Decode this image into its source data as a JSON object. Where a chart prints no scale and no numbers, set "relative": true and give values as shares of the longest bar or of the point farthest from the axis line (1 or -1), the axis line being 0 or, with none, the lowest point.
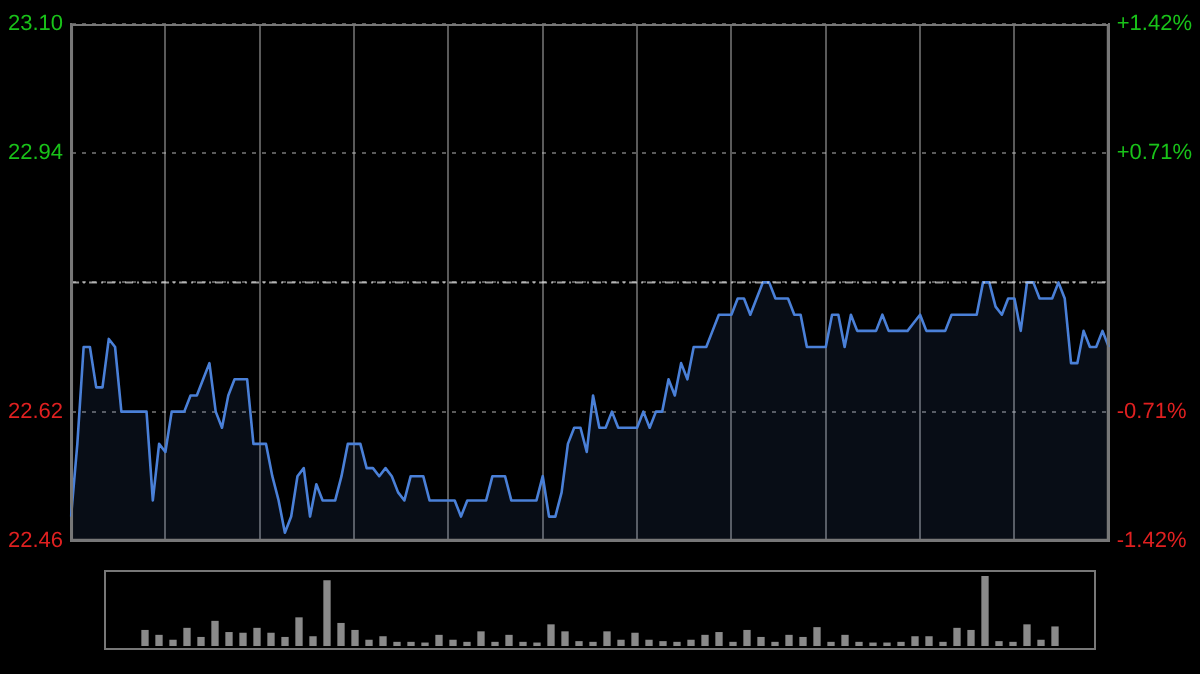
{
  "chart_data": [
    {
      "type": "area",
      "categories": [
        null,
        null,
        null,
        null,
        null,
        null,
        null,
        null,
        null,
        null,
        null,
        null,
        null,
        null,
        null,
        null,
        null,
        null,
        null,
        null,
        null,
        null,
        null,
        null,
        null,
        null,
        null,
        null,
        null,
        null,
        null,
        null,
        null,
        null,
        null,
        null,
        null,
        null,
        null,
        null,
        null,
        null,
        null,
        null,
        null,
        null,
        null,
        null,
        null,
        null,
        null,
        null,
        null,
        null,
        null,
        null,
        null,
        null,
        null,
        null,
        null,
        null,
        null,
        null,
        null,
        null,
        null,
        null,
        null,
        null,
        null,
        null,
        null,
        null,
        null,
        null,
        null,
        null,
        null,
        null,
        null,
        null,
        null,
        null,
        null,
        null,
        null,
        null,
        null,
        null,
        null,
        null,
        null,
        null,
        null,
        null,
        null,
        null,
        null,
        null,
        null,
        null,
        null,
        null,
        null,
        null,
        null,
        null,
        null,
        null,
        null,
        null,
        null,
        null,
        null,
        null,
        null,
        null,
        null,
        null,
        null,
        null,
        null,
        null,
        null,
        null,
        null,
        null,
        null,
        null,
        null,
        null,
        null,
        null,
        null,
        null,
        null,
        null,
        null,
        null,
        null,
        null,
        null,
        null,
        null,
        null,
        null,
        null,
        null,
        null,
        null,
        null,
        null,
        null,
        null,
        null,
        null,
        null,
        null,
        null,
        null,
        null,
        null,
        null,
        null,
        null
      ],
      "series": [
        {
          "color": "#4a80d8",
          "values": [
            22.49,
            22.58,
            22.7,
            22.7,
            22.65,
            22.65,
            22.71,
            22.7,
            22.62,
            22.62,
            22.62,
            22.62,
            22.62,
            22.51,
            22.58,
            22.57,
            22.62,
            22.62,
            22.62,
            22.64,
            22.64,
            22.66,
            22.68,
            22.62,
            22.6,
            22.64,
            22.66,
            22.66,
            22.66,
            22.58,
            22.58,
            22.58,
            22.54,
            22.51,
            22.47,
            22.49,
            22.54,
            22.55,
            22.49,
            22.53,
            22.51,
            22.51,
            22.51,
            22.54,
            22.58,
            22.58,
            22.58,
            22.55,
            22.55,
            22.54,
            22.55,
            22.54,
            22.52,
            22.51,
            22.54,
            22.54,
            22.54,
            22.51,
            22.51,
            22.51,
            22.51,
            22.51,
            22.49,
            22.51,
            22.51,
            22.51,
            22.51,
            22.54,
            22.54,
            22.54,
            22.51,
            22.51,
            22.51,
            22.51,
            22.51,
            22.54,
            22.49,
            22.49,
            22.52,
            22.58,
            22.6,
            22.6,
            22.57,
            22.64,
            22.6,
            22.6,
            22.62,
            22.6,
            22.6,
            22.6,
            22.6,
            22.62,
            22.6,
            22.62,
            22.62,
            22.66,
            22.64,
            22.68,
            22.66,
            22.7,
            22.7,
            22.7,
            22.72,
            22.74,
            22.74,
            22.74,
            22.76,
            22.76,
            22.74,
            22.76,
            22.78,
            22.78,
            22.76,
            22.76,
            22.76,
            22.74,
            22.74,
            22.7,
            22.7,
            22.7,
            22.7,
            22.74,
            22.74,
            22.7,
            22.74,
            22.72,
            22.72,
            22.72,
            22.72,
            22.74,
            22.72,
            22.72,
            22.72,
            22.72,
            22.73,
            22.74,
            22.72,
            22.72,
            22.72,
            22.72,
            22.74,
            22.74,
            22.74,
            22.74,
            22.74,
            22.78,
            22.78,
            22.75,
            22.74,
            22.76,
            22.76,
            22.72,
            22.78,
            22.78,
            22.76,
            22.76,
            22.76,
            22.78,
            22.76,
            22.68,
            22.68,
            22.72,
            22.7,
            22.7,
            22.72,
            22.7
          ]
        }
      ],
      "ylim": [
        22.46,
        23.1
      ],
      "yticks": [
        {
          "value": 22.46,
          "label": "22.46"
        },
        {
          "value": 22.62,
          "label": "22.62"
        },
        {
          "value": 22.78,
          "label": null
        },
        {
          "value": 22.94,
          "label": "22.94"
        },
        {
          "value": 23.1,
          "label": "23.10"
        }
      ],
      "y2lim": [
        -1.42,
        1.42
      ],
      "y2ticks": [
        {
          "value": -1.42,
          "label": "-1.42%"
        },
        {
          "value": -0.71,
          "label": "-0.71%"
        },
        {
          "value": 0,
          "label": null
        },
        {
          "value": 0.71,
          "label": "+0.71%"
        },
        {
          "value": 1.42,
          "label": "+1.42%"
        }
      ],
      "ref_lines": [
        {
          "axis": "y",
          "value": 22.78,
          "line_style": "dashed"
        }
      ],
      "grid": true,
      "legend": false
    },
    {
      "type": "bar",
      "relative": true,
      "categories": [
        null,
        null,
        null,
        null,
        null,
        null,
        null,
        null,
        null,
        null,
        null,
        null,
        null,
        null,
        null,
        null,
        null,
        null,
        null,
        null,
        null,
        null,
        null,
        null,
        null,
        null,
        null,
        null,
        null,
        null,
        null,
        null,
        null,
        null,
        null,
        null,
        null,
        null,
        null,
        null,
        null,
        null,
        null,
        null,
        null,
        null,
        null,
        null,
        null,
        null,
        null,
        null,
        null,
        null,
        null,
        null,
        null,
        null,
        null,
        null,
        null,
        null,
        null,
        null,
        null,
        null
      ],
      "series": [
        {
          "color": "#8a8a8a",
          "values": [
            0.22,
            0.15,
            0.08,
            0.25,
            0.12,
            0.35,
            0.19,
            0.18,
            0.25,
            0.18,
            0.12,
            0.4,
            0.13,
            0.93,
            0.32,
            0.22,
            0.08,
            0.13,
            0.05,
            0.05,
            0.04,
            0.15,
            0.08,
            0.05,
            0.2,
            0.05,
            0.15,
            0.05,
            0.04,
            0.3,
            0.2,
            0.06,
            0.05,
            0.2,
            0.08,
            0.18,
            0.08,
            0.06,
            0.05,
            0.08,
            0.15,
            0.19,
            0.05,
            0.22,
            0.12,
            0.05,
            0.15,
            0.12,
            0.26,
            0.05,
            0.15,
            0.05,
            0.04,
            0.04,
            0.05,
            0.13,
            0.13,
            0.05,
            0.25,
            0.22,
            1.0,
            0.06,
            0.05,
            0.3,
            0.08,
            0.27
          ]
        }
      ],
      "legend": false
    }
  ]
}
